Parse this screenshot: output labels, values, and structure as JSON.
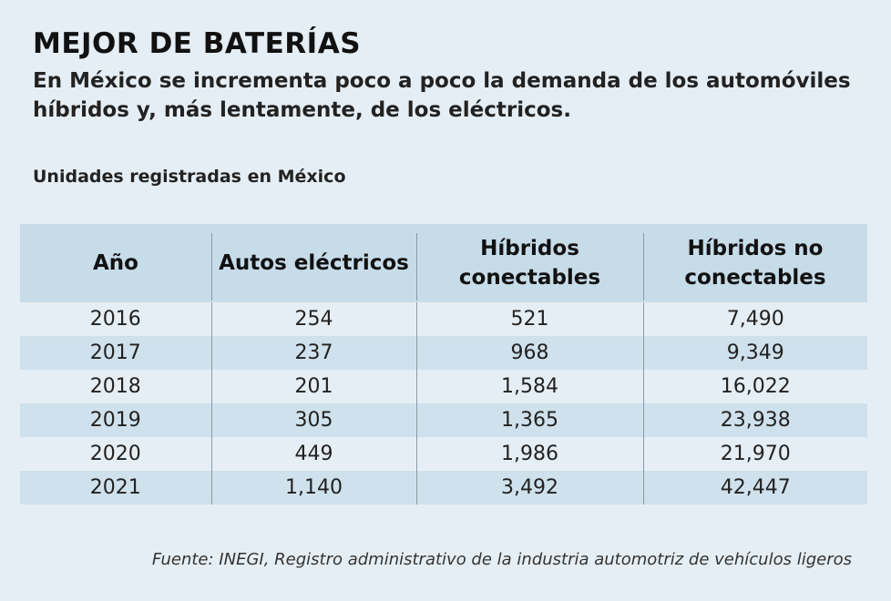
{
  "title": "MEJOR DE BATERÍAS",
  "subtitle": "En México se incrementa poco a poco la demanda de los automóviles híbridos y, más lentamente, de los eléctricos.",
  "table_label": "Unidades registradas en México",
  "source": "Fuente: INEGI, Registro administrativo de la industria automotriz de vehículos ligeros",
  "colors": {
    "background": "#e6eef5",
    "header": "#c7dce9",
    "alt_row": "#cfe1ec"
  },
  "chart_data": {
    "type": "table",
    "columns": [
      "Año",
      "Autos eléctricos",
      "Híbridos conectables",
      "Híbridos no conectables"
    ],
    "rows": [
      [
        "2016",
        "254",
        "521",
        "7,490"
      ],
      [
        "2017",
        "237",
        "968",
        "9,349"
      ],
      [
        "2018",
        "201",
        "1,584",
        "16,022"
      ],
      [
        "2019",
        "305",
        "1,365",
        "23,938"
      ],
      [
        "2020",
        "449",
        "1,986",
        "21,970"
      ],
      [
        "2021",
        "1,140",
        "3,492",
        "42,447"
      ]
    ]
  }
}
